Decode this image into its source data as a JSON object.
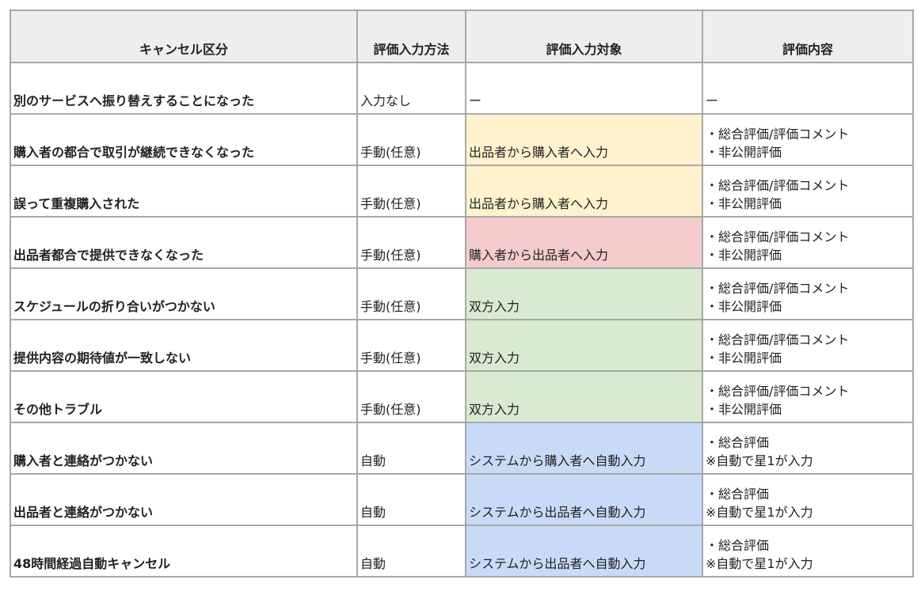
{
  "headers": [
    "キャンセル区分",
    "評価入力方法",
    "評価入力対象",
    "評価内容"
  ],
  "colors": {
    "yellow": "#fff2cc",
    "red": "#f4cccc",
    "green": "#d9ead3",
    "blue": "#c9daf8",
    "header": "#eeeeee"
  },
  "rows": [
    {
      "category": "別のサービスへ振り替えすることになった",
      "method": "入力なし",
      "target": "ー",
      "target_color": "none",
      "content": [
        "ー"
      ]
    },
    {
      "category": "購入者の都合で取引が継続できなくなった",
      "method": "手動(任意)",
      "target": "出品者から購入者へ入力",
      "target_color": "yellow",
      "content": [
        "・総合評価/評価コメント",
        "・非公開評価"
      ]
    },
    {
      "category": "誤って重複購入された",
      "method": "手動(任意)",
      "target": "出品者から購入者へ入力",
      "target_color": "yellow",
      "content": [
        "・総合評価/評価コメント",
        "・非公開評価"
      ]
    },
    {
      "category": "出品者都合で提供できなくなった",
      "method": "手動(任意)",
      "target": "購入者から出品者へ入力",
      "target_color": "red",
      "content": [
        "・総合評価/評価コメント",
        "・非公開評価"
      ]
    },
    {
      "category": "スケジュールの折り合いがつかない",
      "method": "手動(任意)",
      "target": "双方入力",
      "target_color": "green",
      "content": [
        "・総合評価/評価コメント",
        "・非公開評価"
      ]
    },
    {
      "category": "提供内容の期待値が一致しない",
      "method": "手動(任意)",
      "target": "双方入力",
      "target_color": "green",
      "content": [
        "・総合評価/評価コメント",
        "・非公開評価"
      ]
    },
    {
      "category": "その他トラブル",
      "method": "手動(任意)",
      "target": "双方入力",
      "target_color": "green",
      "content": [
        "・総合評価/評価コメント",
        "・非公開評価"
      ]
    },
    {
      "category": "購入者と連絡がつかない",
      "method": "自動",
      "target": "システムから購入者へ自動入力",
      "target_color": "blue",
      "content": [
        "・総合評価",
        "※自動で星1が入力"
      ]
    },
    {
      "category": "出品者と連絡がつかない",
      "method": "自動",
      "target": "システムから出品者へ自動入力",
      "target_color": "blue",
      "content": [
        "・総合評価",
        "※自動で星1が入力"
      ]
    },
    {
      "category": "48時間経過自動キャンセル",
      "method": "自動",
      "target": "システムから出品者へ自動入力",
      "target_color": "blue",
      "content": [
        "・総合評価",
        "※自動で星1が入力"
      ]
    }
  ]
}
